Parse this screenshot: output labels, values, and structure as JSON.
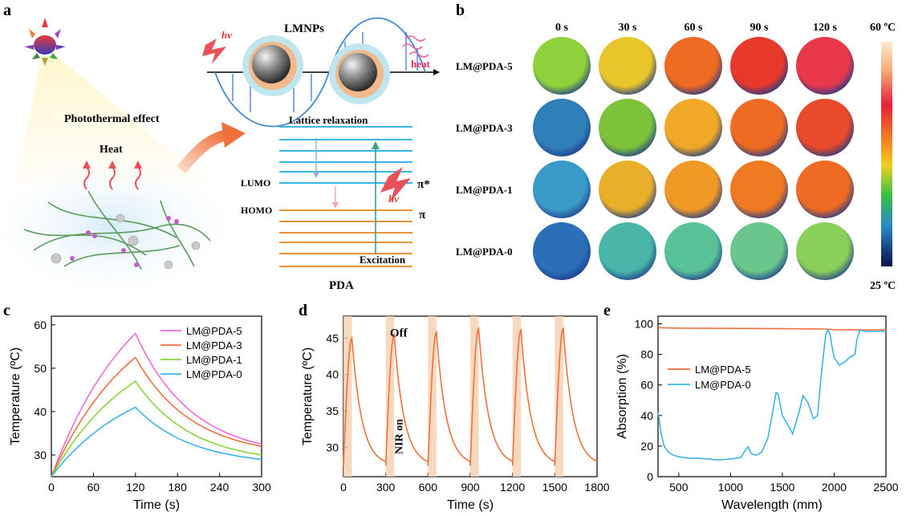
{
  "panel_labels": {
    "a": "a",
    "b": "b",
    "c": "c",
    "d": "d",
    "e": "e"
  },
  "panel_a": {
    "title_top": "LMNPs",
    "hv": "hv",
    "heat": "heat",
    "photothermal": "Photothermal effect",
    "heat_label": "Heat",
    "lattice": "Lattice relaxation",
    "lumo": "LUMO",
    "homo": "HOMO",
    "pi_star": "π*",
    "pi": "π",
    "excitation": "Excitation",
    "pda": "PDA"
  },
  "panel_b": {
    "times": [
      "0 s",
      "30 s",
      "60 s",
      "90 s",
      "120 s"
    ],
    "samples": [
      "LM@PDA-5",
      "LM@PDA-3",
      "LM@PDA-1",
      "LM@PDA-0"
    ],
    "scale_max": "60 ºC",
    "scale_min": "25 ºC",
    "colors": [
      [
        "#8fd13a",
        "#e8c52a",
        "#ef6a22",
        "#e8382a",
        "#e8384a"
      ],
      [
        "#2f7fb8",
        "#7ec23a",
        "#f0a826",
        "#ef6a22",
        "#e84a2a"
      ],
      [
        "#3a9ac8",
        "#e8b02a",
        "#f09a26",
        "#f07a22",
        "#ef6a22"
      ],
      [
        "#2a6fb8",
        "#4ab6a8",
        "#5ac298",
        "#6ac68a",
        "#8acf5a"
      ]
    ]
  },
  "chart_data": [
    {
      "type": "line",
      "panel": "c",
      "xlabel": "Time (s)",
      "ylabel": "Temperature (ºC)",
      "xlim": [
        0,
        300
      ],
      "ylim": [
        25,
        62
      ],
      "xticks": [
        "0",
        "60",
        "120",
        "180",
        "240",
        "300"
      ],
      "yticks": [
        "30",
        "40",
        "50",
        "60"
      ],
      "legend_position": "top-right",
      "series": [
        {
          "name": "LM@PDA-5",
          "color": "#f06ad6",
          "peak": 58,
          "end": 32.5,
          "start": 25
        },
        {
          "name": "LM@PDA-3",
          "color": "#f0703c",
          "peak": 52.5,
          "end": 32,
          "start": 25
        },
        {
          "name": "LM@PDA-1",
          "color": "#8ad63a",
          "peak": 47,
          "end": 30,
          "start": 25
        },
        {
          "name": "LM@PDA-0",
          "color": "#3ab4e8",
          "peak": 41,
          "end": 29,
          "start": 25
        }
      ]
    },
    {
      "type": "line",
      "panel": "d",
      "xlabel": "Time (s)",
      "ylabel": "Temperature (ºC)",
      "xlim": [
        0,
        1800
      ],
      "ylim": [
        26,
        48
      ],
      "xticks": [
        "0",
        "300",
        "600",
        "900",
        "1200",
        "1500",
        "1800"
      ],
      "yticks": [
        "30",
        "35",
        "40",
        "45"
      ],
      "annotation_off": "Off",
      "annotation_nir": "NIR on",
      "cycles": [
        {
          "start": 0,
          "on_end": 60,
          "peak": 45
        },
        {
          "start": 300,
          "on_end": 360,
          "peak": 45.5
        },
        {
          "start": 600,
          "on_end": 660,
          "peak": 45.8
        },
        {
          "start": 900,
          "on_end": 960,
          "peak": 46.3
        },
        {
          "start": 1200,
          "on_end": 1260,
          "peak": 46.1
        },
        {
          "start": 1500,
          "on_end": 1560,
          "peak": 46.3
        }
      ],
      "baseline": 27.5,
      "series_color": "#f0703c",
      "band_color": "#f5d0b0"
    },
    {
      "type": "line",
      "panel": "e",
      "xlabel": "Wavelength (mm)",
      "ylabel": "Absorption (%)",
      "xlim": [
        300,
        2500
      ],
      "ylim": [
        0,
        105
      ],
      "xticks": [
        "500",
        "1000",
        "1500",
        "2000",
        "2500"
      ],
      "yticks": [
        "0",
        "20",
        "40",
        "60",
        "80",
        "100"
      ],
      "legend_position": "middle-left",
      "series": [
        {
          "name": "LM@PDA-5",
          "color": "#f0703c",
          "x": [
            300,
            500,
            1000,
            1500,
            1900,
            2000,
            2200,
            2500
          ],
          "y": [
            97.5,
            97.2,
            97,
            96.8,
            96.6,
            96.2,
            96,
            96
          ]
        },
        {
          "name": "LM@PDA-0",
          "color": "#3ab4e8",
          "x": [
            300,
            310,
            330,
            360,
            400,
            450,
            500,
            600,
            700,
            800,
            850,
            900,
            1000,
            1100,
            1140,
            1170,
            1200,
            1250,
            1300,
            1360,
            1400,
            1440,
            1460,
            1500,
            1560,
            1600,
            1660,
            1700,
            1750,
            1800,
            1840,
            1880,
            1920,
            1940,
            1960,
            1980,
            2000,
            2050,
            2100,
            2150,
            2200,
            2220,
            2250,
            2300,
            2400,
            2500
          ],
          "y": [
            42,
            38,
            28,
            20,
            16,
            14,
            13,
            12,
            12,
            11.5,
            11,
            11,
            11.5,
            12.5,
            17,
            19.5,
            15,
            14,
            16,
            25,
            40,
            55,
            54,
            40,
            33,
            28,
            42,
            53,
            48,
            38,
            40,
            70,
            93,
            96,
            93,
            85,
            78,
            73,
            75,
            78,
            80,
            90,
            96,
            95,
            95,
            95
          ]
        }
      ]
    }
  ]
}
